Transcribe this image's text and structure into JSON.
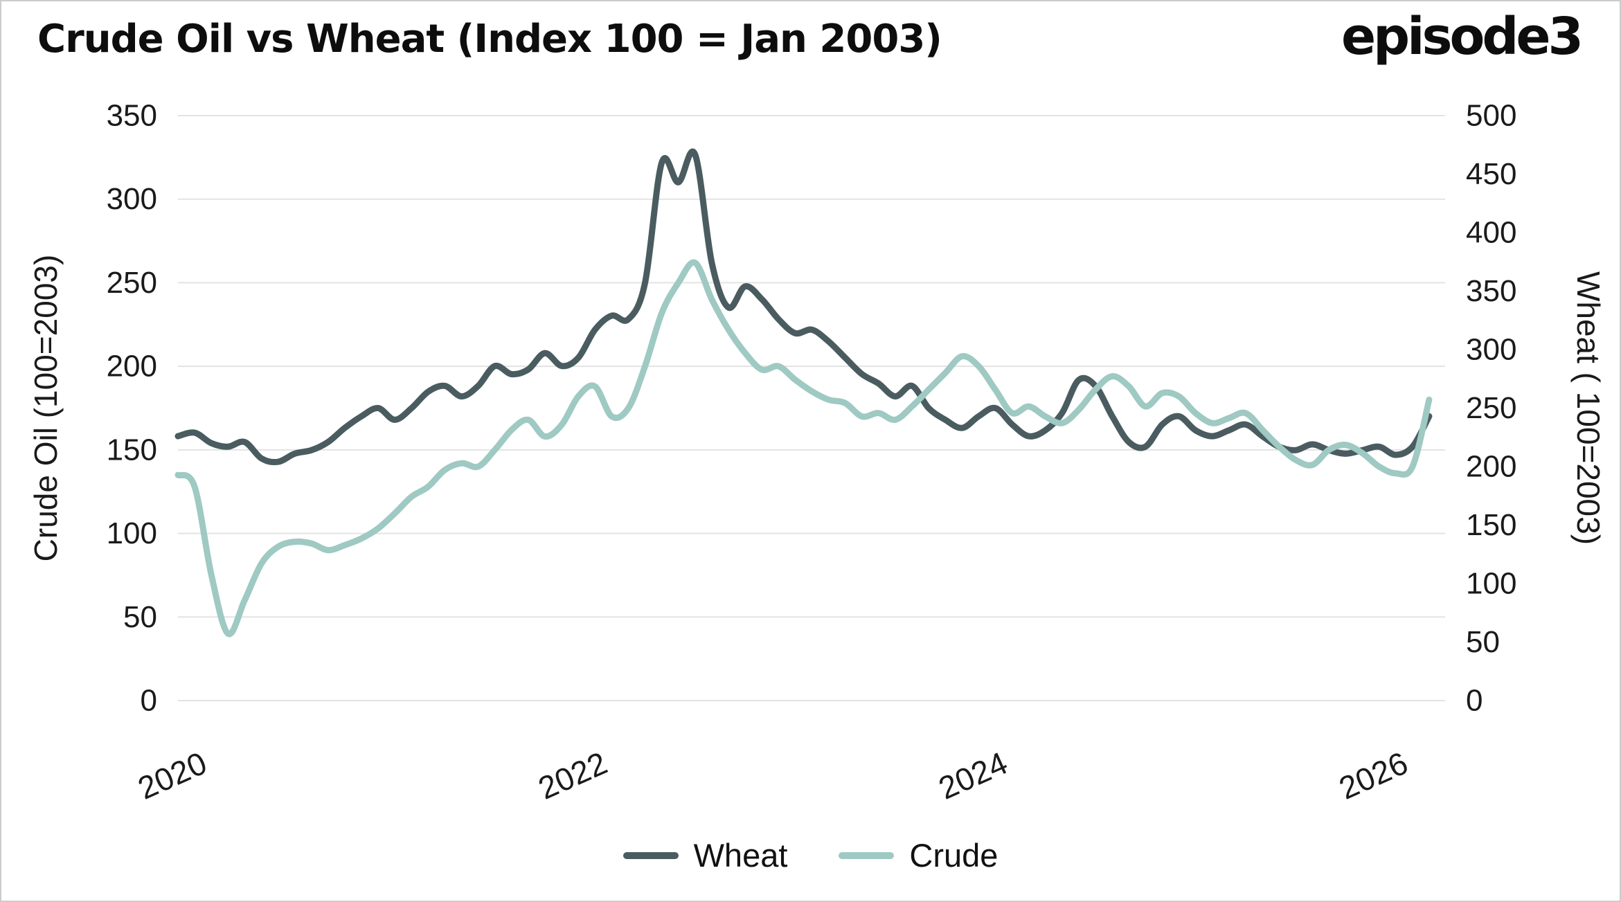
{
  "header": {
    "title": "Crude Oil vs Wheat (Index 100 = Jan 2003)",
    "logo": "episode3"
  },
  "colors": {
    "background": "#ffffff",
    "border": "#cccccc",
    "grid": "#e3e3e3",
    "text": "#1a1a1a",
    "wheat_line": "#4a5c60",
    "crude_line": "#9fc9c3"
  },
  "chart_data": {
    "type": "line",
    "title": "Crude Oil vs Wheat (Index 100 = Jan 2003)",
    "grid": "horizontal",
    "legend_position": "bottom",
    "x_label_ticks": [
      2020,
      2022,
      2024,
      2026
    ],
    "x_range": [
      2020,
      2026.33
    ],
    "left_axis": {
      "label": "Crude Oil (100=2003)",
      "range": [
        0,
        350
      ],
      "ticks": [
        0,
        50,
        100,
        150,
        200,
        250,
        300,
        350
      ]
    },
    "right_axis": {
      "label": "Wheat ( 100=2003)",
      "range": [
        0,
        500
      ],
      "ticks": [
        0,
        50,
        100,
        150,
        200,
        250,
        300,
        350,
        400,
        450,
        500
      ]
    },
    "x": [
      2020.0,
      2020.083,
      2020.167,
      2020.25,
      2020.333,
      2020.417,
      2020.5,
      2020.583,
      2020.667,
      2020.75,
      2020.833,
      2020.917,
      2021.0,
      2021.083,
      2021.167,
      2021.25,
      2021.333,
      2021.417,
      2021.5,
      2021.583,
      2021.667,
      2021.75,
      2021.833,
      2021.917,
      2022.0,
      2022.083,
      2022.167,
      2022.25,
      2022.333,
      2022.417,
      2022.5,
      2022.583,
      2022.667,
      2022.75,
      2022.833,
      2022.917,
      2023.0,
      2023.083,
      2023.167,
      2023.25,
      2023.333,
      2023.417,
      2023.5,
      2023.583,
      2023.667,
      2023.75,
      2023.833,
      2023.917,
      2024.0,
      2024.083,
      2024.167,
      2024.25,
      2024.333,
      2024.417,
      2024.5,
      2024.583,
      2024.667,
      2024.75,
      2024.833,
      2024.917,
      2025.0,
      2025.083,
      2025.167,
      2025.25,
      2025.333,
      2025.417,
      2025.5,
      2025.583,
      2025.667,
      2025.75,
      2025.833,
      2025.917,
      2026.0,
      2026.083,
      2026.167,
      2026.25
    ],
    "series": [
      {
        "name": "Wheat",
        "axis": "right",
        "color": "#4a5c60",
        "values": [
          226,
          229,
          220,
          217,
          221,
          207,
          204,
          211,
          214,
          221,
          233,
          243,
          250,
          240,
          250,
          264,
          269,
          260,
          269,
          286,
          279,
          283,
          297,
          286,
          293,
          317,
          329,
          326,
          357,
          460,
          443,
          467,
          374,
          336,
          354,
          343,
          326,
          314,
          317,
          307,
          293,
          279,
          271,
          260,
          269,
          250,
          240,
          233,
          243,
          250,
          236,
          226,
          231,
          246,
          274,
          269,
          243,
          221,
          217,
          236,
          243,
          231,
          226,
          231,
          236,
          226,
          217,
          214,
          219,
          214,
          211,
          214,
          217,
          210,
          217,
          243
        ]
      },
      {
        "name": "Crude",
        "axis": "left",
        "color": "#9fc9c3",
        "values": [
          135,
          128,
          75,
          40,
          60,
          82,
          92,
          95,
          94,
          90,
          93,
          97,
          103,
          112,
          122,
          128,
          138,
          142,
          140,
          150,
          162,
          168,
          158,
          165,
          182,
          188,
          170,
          175,
          200,
          232,
          250,
          262,
          240,
          222,
          208,
          198,
          200,
          192,
          185,
          180,
          178,
          170,
          172,
          168,
          176,
          186,
          196,
          206,
          200,
          186,
          172,
          176,
          170,
          166,
          174,
          186,
          194,
          188,
          176,
          184,
          182,
          172,
          166,
          169,
          172,
          162,
          152,
          144,
          141,
          150,
          153,
          148,
          140,
          136,
          140,
          180
        ]
      }
    ]
  }
}
